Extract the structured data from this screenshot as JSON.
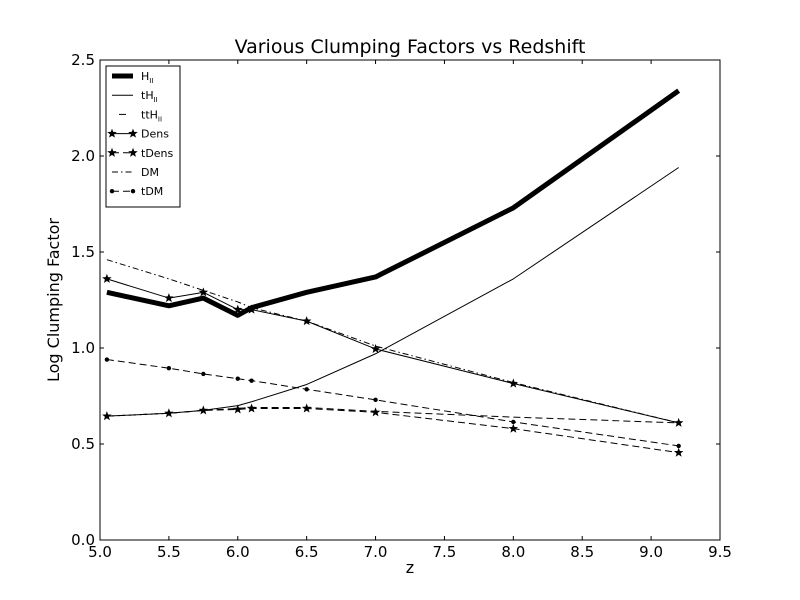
{
  "chart_data": {
    "type": "line",
    "title": "Various Clumping Factors vs Redshift",
    "xlabel": "z",
    "ylabel": "Log Clumping Factor",
    "xlim": [
      5.0,
      9.5
    ],
    "ylim": [
      0.0,
      2.5
    ],
    "xticks": [
      "5.0",
      "5.5",
      "6.0",
      "6.5",
      "7.0",
      "7.5",
      "8.0",
      "8.5",
      "9.0",
      "9.5"
    ],
    "yticks": [
      "0.0",
      "0.5",
      "1.0",
      "1.5",
      "2.0",
      "2.5"
    ],
    "grid": false,
    "legend_position": "top-left",
    "series": [
      {
        "name": "H",
        "sub": "II",
        "style": "solid-thick",
        "marker": "none",
        "x": [
          5.05,
          5.5,
          5.75,
          6.0,
          6.1,
          6.5,
          7.0,
          8.0,
          9.2
        ],
        "y": [
          1.29,
          1.22,
          1.26,
          1.17,
          1.21,
          1.29,
          1.37,
          1.73,
          2.34
        ]
      },
      {
        "name": "tH",
        "sub": "II",
        "style": "solid",
        "marker": "none",
        "x": [
          5.05,
          5.5,
          5.75,
          6.0,
          6.1,
          6.5,
          7.0,
          8.0,
          9.2
        ],
        "y": [
          0.645,
          0.66,
          0.675,
          0.7,
          0.72,
          0.81,
          0.97,
          1.36,
          1.94
        ]
      },
      {
        "name": "ttH",
        "sub": "II",
        "style": "dashed",
        "marker": "none",
        "x": [
          5.05,
          5.5,
          5.75,
          6.0,
          6.1,
          6.5,
          7.0,
          8.0,
          9.2
        ],
        "y": [
          0.645,
          0.66,
          0.675,
          0.685,
          0.69,
          0.69,
          0.67,
          0.64,
          0.61
        ]
      },
      {
        "name": "Dens",
        "sub": "",
        "style": "solid",
        "marker": "star",
        "x": [
          5.05,
          5.5,
          5.75,
          6.0,
          6.1,
          6.5,
          7.0,
          8.0,
          9.2
        ],
        "y": [
          1.36,
          1.26,
          1.29,
          1.2,
          1.2,
          1.14,
          0.995,
          0.815,
          0.61
        ]
      },
      {
        "name": "tDens",
        "sub": "",
        "style": "dashed",
        "marker": "star",
        "x": [
          5.05,
          5.5,
          5.75,
          6.0,
          6.1,
          6.5,
          7.0,
          8.0,
          9.2
        ],
        "y": [
          0.645,
          0.66,
          0.675,
          0.68,
          0.685,
          0.685,
          0.665,
          0.58,
          0.455
        ]
      },
      {
        "name": "DM",
        "sub": "",
        "style": "dashdot",
        "marker": "none",
        "x": [
          5.05,
          5.5,
          5.75,
          6.0,
          6.1,
          6.5,
          7.0,
          8.0,
          9.2
        ],
        "y": [
          1.46,
          1.36,
          1.3,
          1.24,
          1.21,
          1.14,
          1.01,
          0.82,
          0.61
        ]
      },
      {
        "name": "tDM",
        "sub": "",
        "style": "dashed",
        "marker": "dot",
        "x": [
          5.05,
          5.5,
          5.75,
          6.0,
          6.1,
          6.5,
          7.0,
          8.0,
          9.2
        ],
        "y": [
          0.94,
          0.895,
          0.865,
          0.84,
          0.83,
          0.785,
          0.73,
          0.615,
          0.49
        ]
      }
    ]
  }
}
